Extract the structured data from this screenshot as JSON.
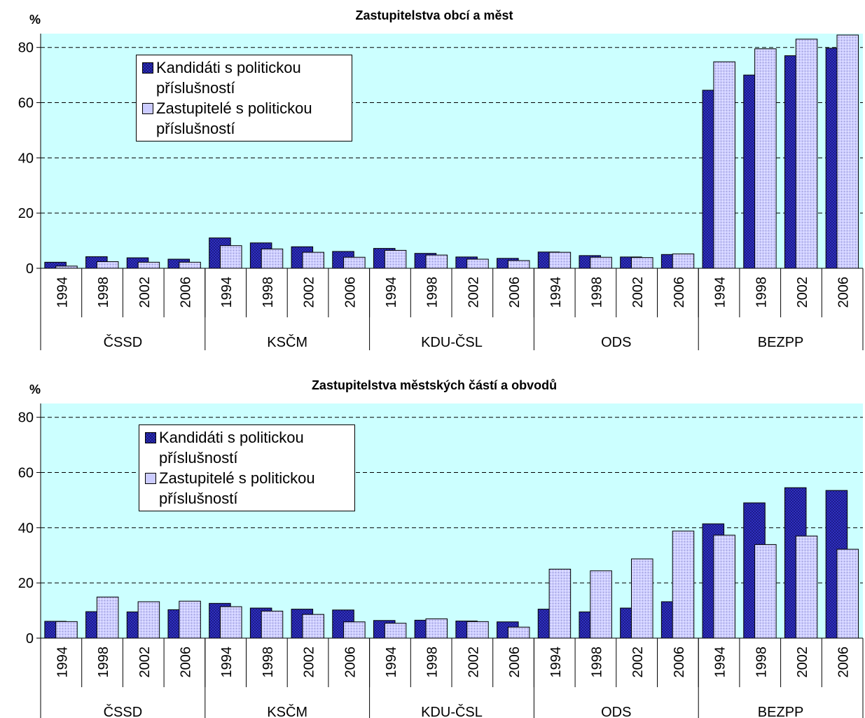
{
  "chart_data": [
    {
      "type": "bar",
      "title": "Zastupitelstva obcí a měst",
      "y_label": "%",
      "categories": [
        "1994",
        "1998",
        "2002",
        "2006",
        "1994",
        "1998",
        "2002",
        "2006",
        "1994",
        "1998",
        "2002",
        "2006",
        "1994",
        "1998",
        "2002",
        "2006",
        "1994",
        "1998",
        "2002",
        "2006"
      ],
      "groups": [
        "ČSSD",
        "KSČM",
        "KDU-ČSL",
        "ODS",
        "BEZPP"
      ],
      "series": [
        {
          "name": "Kandidáti s politickou příslušností",
          "color": "#3333cc",
          "values": [
            2.2,
            4.2,
            3.8,
            3.3,
            11,
            9.2,
            7.8,
            6.1,
            7.2,
            5.4,
            4.1,
            3.6,
            5.9,
            4.6,
            4.1,
            5,
            64.5,
            70,
            77,
            79.7
          ]
        },
        {
          "name": "Zastupitelé s politickou příslušností",
          "color": "#ccccff",
          "values": [
            0.8,
            2.4,
            2.2,
            2.2,
            8.2,
            7,
            5.8,
            4,
            6.5,
            4.8,
            3.3,
            2.8,
            5.8,
            4,
            3.9,
            5.2,
            74.8,
            79.5,
            83,
            84.5
          ]
        }
      ],
      "ylim": [
        0,
        85
      ],
      "yticks": [
        0,
        20,
        40,
        60,
        80
      ],
      "grid": true,
      "legend": "upper left",
      "background": "#ccffff"
    },
    {
      "type": "bar",
      "title": "Zastupitelstva městských částí a obvodů",
      "y_label": "%",
      "categories": [
        "1994",
        "1998",
        "2002",
        "2006",
        "1994",
        "1998",
        "2002",
        "2006",
        "1994",
        "1998",
        "2002",
        "2006",
        "1994",
        "1998",
        "2002",
        "2006",
        "1994",
        "1998",
        "2002",
        "2006"
      ],
      "groups": [
        "ČSSD",
        "KSČM",
        "KDU-ČSL",
        "ODS",
        "BEZPP"
      ],
      "series": [
        {
          "name": "Kandidáti s politickou příslušností",
          "color": "#3333cc",
          "values": [
            6.1,
            9.6,
            9.5,
            10.3,
            12.6,
            10.9,
            10.5,
            10.2,
            6.4,
            6.5,
            6.2,
            5.9,
            10.5,
            9.5,
            10.9,
            13.2,
            41.4,
            49,
            54.5,
            53.5
          ]
        },
        {
          "name": "Zastupitelé s politickou příslušností",
          "color": "#ccccff",
          "values": [
            6,
            14.9,
            13.2,
            13.4,
            11.4,
            9.8,
            8.6,
            5.9,
            5.4,
            7,
            6,
            4,
            25,
            24.4,
            28.7,
            38.8,
            37.3,
            33.9,
            37,
            32.2
          ]
        }
      ],
      "ylim": [
        0,
        85
      ],
      "yticks": [
        0,
        20,
        40,
        60,
        80
      ],
      "grid": true,
      "legend": "upper left",
      "background": "#ccffff"
    }
  ]
}
